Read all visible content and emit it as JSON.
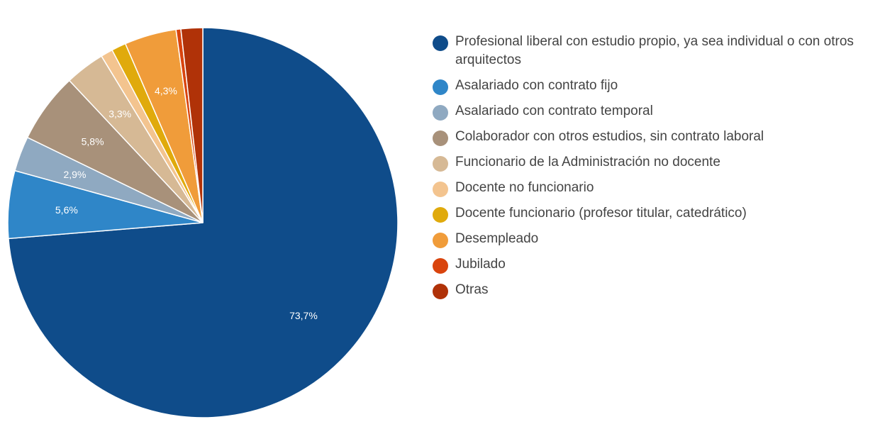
{
  "chart_data": {
    "type": "pie",
    "labels": [
      "Profesional liberal con estudio propio, ya sea individual o con otros arquitectos",
      "Asalariado con contrato fijo",
      "Asalariado con contrato temporal",
      "Colaborador con otros estudios, sin contrato laboral",
      "Funcionario de la Administración no docente",
      "Docente no funcionario",
      "Docente funcionario (profesor titular, catedrático)",
      "Desempleado",
      "Jubilado",
      "Otras"
    ],
    "values": [
      73.7,
      5.6,
      2.9,
      5.8,
      3.3,
      1.0,
      1.2,
      4.3,
      0.4,
      1.8
    ],
    "value_labels": [
      "73,7%",
      "5,6%",
      "2,9%",
      "5,8%",
      "3,3%",
      "",
      "",
      "4,3%",
      "",
      ""
    ],
    "colors": [
      "#0f4c8a",
      "#2f86c8",
      "#8fa9c1",
      "#a8917a",
      "#d6b995",
      "#f3c48f",
      "#e0aa0c",
      "#f09c3a",
      "#d9440d",
      "#b03208"
    ],
    "legend_position": "right"
  }
}
